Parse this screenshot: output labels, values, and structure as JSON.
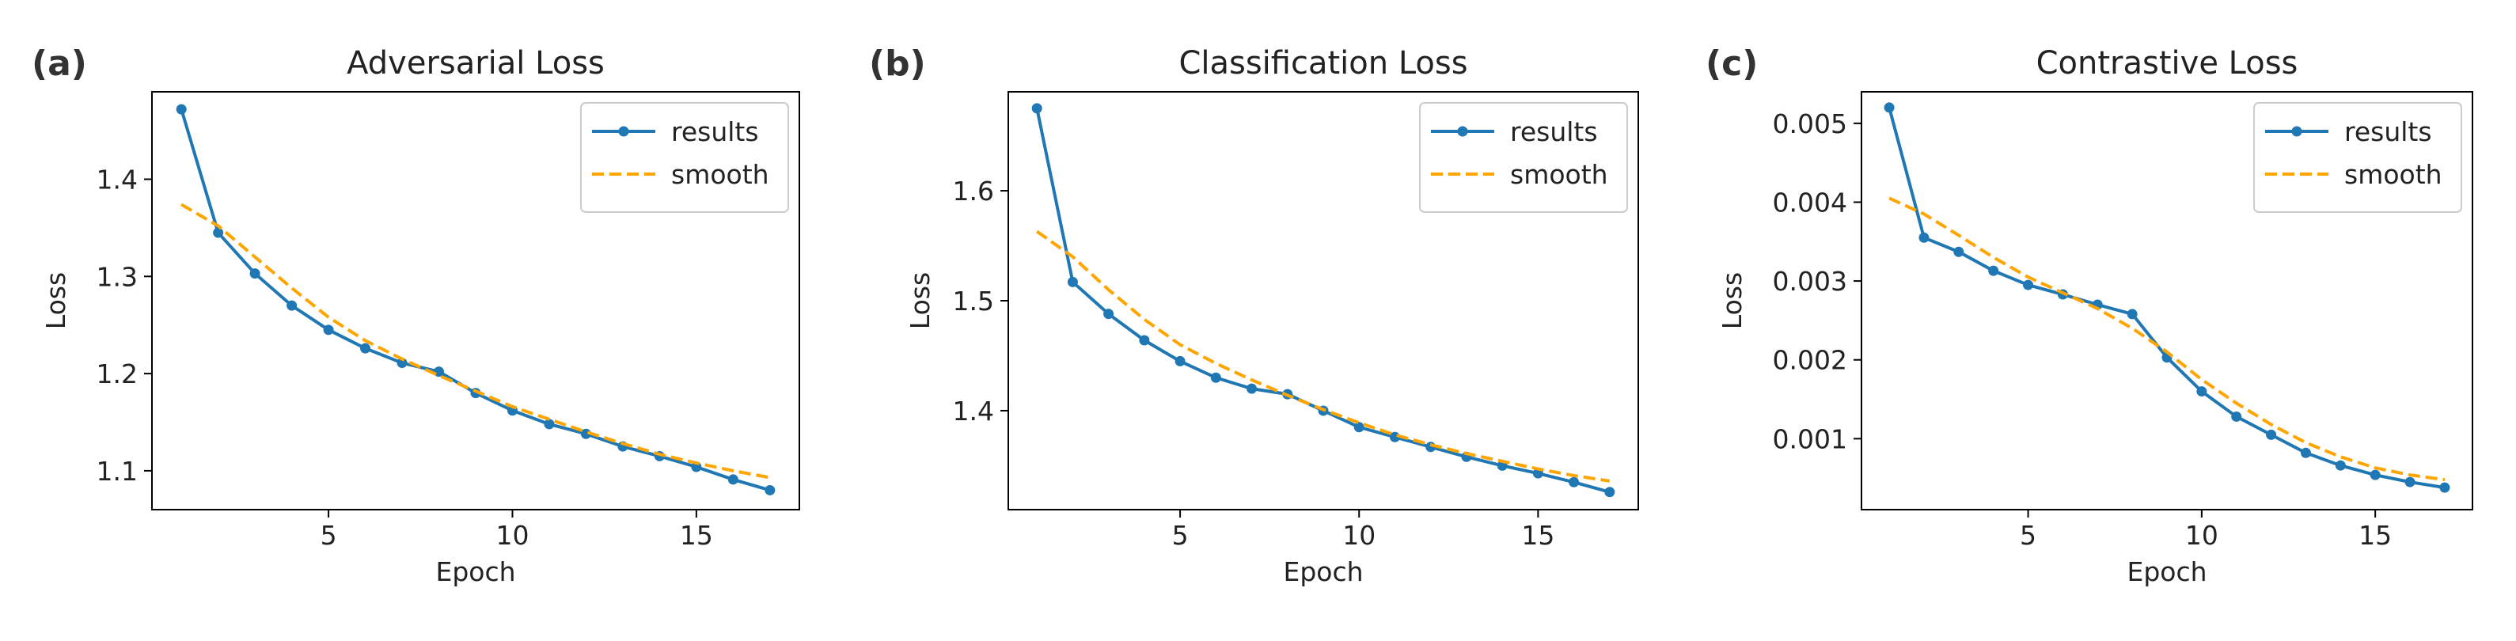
{
  "colors": {
    "results": "#1f77b4",
    "smooth": "#ffa500",
    "frame": "#000000"
  },
  "chart_data": [
    {
      "panel": "(a)",
      "type": "line",
      "title": "Adversarial Loss",
      "xlabel": "Epoch",
      "ylabel": "Loss",
      "xlim": [
        0.2,
        17.8
      ],
      "ylim": [
        1.06,
        1.49
      ],
      "xticks": [
        5,
        10,
        15
      ],
      "yticks": [
        1.1,
        1.2,
        1.3,
        1.4
      ],
      "ytick_labels": [
        "1.1",
        "1.2",
        "1.3",
        "1.4"
      ],
      "grid": false,
      "legend_position": "top-right",
      "x": [
        1,
        2,
        3,
        4,
        5,
        6,
        7,
        8,
        9,
        10,
        11,
        12,
        13,
        14,
        15,
        16,
        17
      ],
      "series": [
        {
          "name": "results",
          "style": "solid-markers",
          "values": [
            1.472,
            1.345,
            1.303,
            1.27,
            1.245,
            1.226,
            1.211,
            1.202,
            1.18,
            1.162,
            1.148,
            1.138,
            1.125,
            1.115,
            1.104,
            1.091,
            1.08
          ]
        },
        {
          "name": "smooth",
          "style": "dashed",
          "values": [
            1.374,
            1.352,
            1.32,
            1.288,
            1.258,
            1.234,
            1.215,
            1.198,
            1.182,
            1.166,
            1.153,
            1.14,
            1.128,
            1.117,
            1.108,
            1.1,
            1.093
          ]
        }
      ]
    },
    {
      "panel": "(b)",
      "type": "line",
      "title": "Classification Loss",
      "xlabel": "Epoch",
      "ylabel": "Loss",
      "xlim": [
        0.2,
        17.8
      ],
      "ylim": [
        1.31,
        1.69
      ],
      "xticks": [
        5,
        10,
        15
      ],
      "yticks": [
        1.4,
        1.5,
        1.6
      ],
      "ytick_labels": [
        "1.4",
        "1.5",
        "1.6"
      ],
      "grid": false,
      "legend_position": "top-right",
      "x": [
        1,
        2,
        3,
        4,
        5,
        6,
        7,
        8,
        9,
        10,
        11,
        12,
        13,
        14,
        15,
        16,
        17
      ],
      "series": [
        {
          "name": "results",
          "style": "solid-markers",
          "values": [
            1.675,
            1.517,
            1.488,
            1.464,
            1.445,
            1.43,
            1.42,
            1.415,
            1.4,
            1.385,
            1.376,
            1.367,
            1.358,
            1.35,
            1.343,
            1.335,
            1.326
          ]
        },
        {
          "name": "smooth",
          "style": "dashed",
          "values": [
            1.563,
            1.54,
            1.51,
            1.483,
            1.46,
            1.443,
            1.428,
            1.414,
            1.401,
            1.389,
            1.378,
            1.369,
            1.361,
            1.354,
            1.347,
            1.341,
            1.336
          ]
        }
      ]
    },
    {
      "panel": "(c)",
      "type": "line",
      "title": "Contrastive Loss",
      "xlabel": "Epoch",
      "ylabel": "Loss",
      "xlim": [
        0.2,
        17.8
      ],
      "ylim": [
        0.0001,
        0.0054
      ],
      "xticks": [
        5,
        10,
        15
      ],
      "yticks": [
        0.001,
        0.002,
        0.003,
        0.004,
        0.005
      ],
      "ytick_labels": [
        "0.001",
        "0.002",
        "0.003",
        "0.004",
        "0.005"
      ],
      "grid": false,
      "legend_position": "top-right",
      "x": [
        1,
        2,
        3,
        4,
        5,
        6,
        7,
        8,
        9,
        10,
        11,
        12,
        13,
        14,
        15,
        16,
        17
      ],
      "series": [
        {
          "name": "results",
          "style": "solid-markers",
          "values": [
            0.0052,
            0.00355,
            0.00337,
            0.00313,
            0.00295,
            0.00283,
            0.0027,
            0.00258,
            0.00203,
            0.0016,
            0.00128,
            0.00105,
            0.00082,
            0.00066,
            0.00054,
            0.00045,
            0.00038
          ]
        },
        {
          "name": "smooth",
          "style": "dashed",
          "values": [
            0.00405,
            0.00385,
            0.00358,
            0.0033,
            0.00305,
            0.00285,
            0.00265,
            0.0024,
            0.0021,
            0.00175,
            0.00145,
            0.00118,
            0.00095,
            0.00077,
            0.00063,
            0.00054,
            0.00048
          ]
        }
      ]
    }
  ]
}
